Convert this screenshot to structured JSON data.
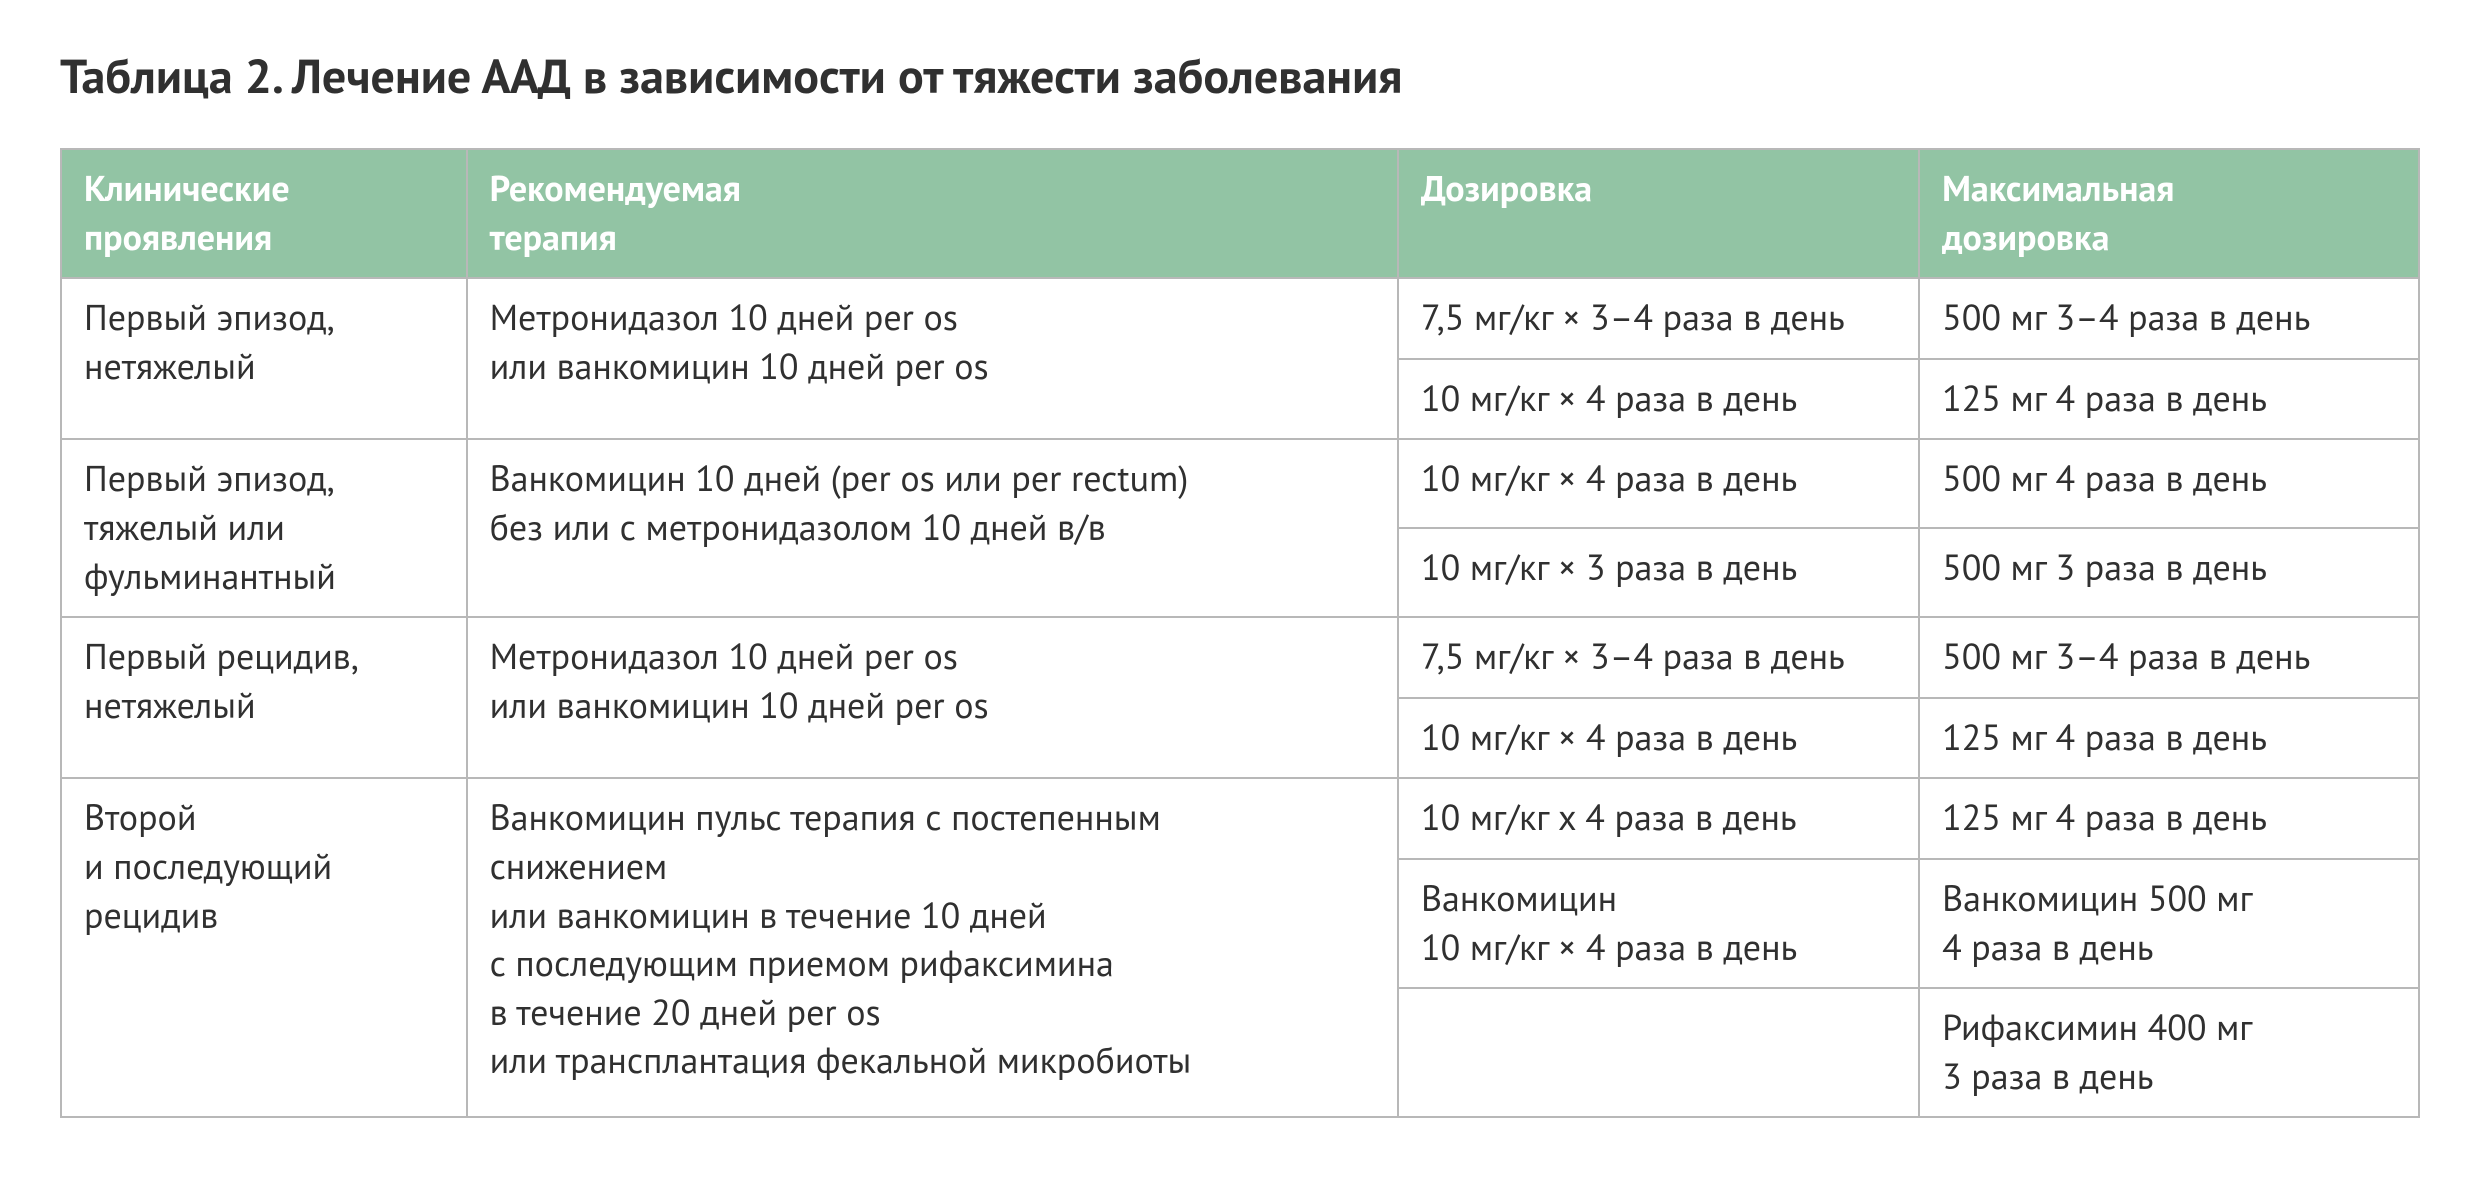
{
  "title": "Таблица 2. Лечение ААД в зависимости от тяжести заболевания",
  "table": {
    "type": "table",
    "header_bg": "#92c4a4",
    "header_text_color": "#ffffff",
    "border_color": "#b8b8b8",
    "body_text_color": "#303030",
    "font_size_pt": 27,
    "title_font_size_pt": 36,
    "column_widths_pct": [
      17.2,
      39.5,
      22.1,
      21.2
    ],
    "columns": [
      "Клинические\nпроявления",
      "Рекомендуемая\nтерапия",
      "Дозировка",
      "Максимальная\nдозировка"
    ],
    "groups": [
      {
        "clinical": "Первый эпизод,\nнетяжелый",
        "therapy": "Метронидазол 10 дней per os\nили ванкомицин 10 дней per os",
        "rows": [
          {
            "dose": "7,5 мг/кг × 3–4 раза в день",
            "max": "500 мг 3–4 раза в день"
          },
          {
            "dose": "10 мг/кг × 4 раза в день",
            "max": "125 мг 4 раза в день"
          }
        ]
      },
      {
        "clinical": "Первый эпизод,\nтяжелый или\nфульминантный",
        "therapy": "Ванкомицин 10 дней (per os или per rectum)\nбез или с метронидазолом 10 дней в/в",
        "rows": [
          {
            "dose": "10 мг/кг × 4 раза в день",
            "max": "500 мг 4 раза в день"
          },
          {
            "dose": "10 мг/кг × 3 раза в день",
            "max": "500 мг 3 раза в день"
          }
        ]
      },
      {
        "clinical": "Первый рецидив,\nнетяжелый",
        "therapy": "Метронидазол 10 дней per os\nили ванкомицин 10 дней per os",
        "rows": [
          {
            "dose": "7,5 мг/кг × 3–4 раза в день",
            "max": "500 мг 3–4 раза в день"
          },
          {
            "dose": "10 мг/кг × 4 раза в день",
            "max": "125 мг 4 раза в день"
          }
        ]
      },
      {
        "clinical": "Второй\nи последующий\nрецидив",
        "therapy": "Ванкомицин пульс терапия с постепенным\nснижением\nили ванкомицин в течение 10 дней\nс последующим приемом рифаксимина\nв течение 20 дней per os\nили трансплантация фекальной микробиоты",
        "rows": [
          {
            "dose": "10 мг/кг х 4 раза в день",
            "max": "125 мг 4 раза в день"
          },
          {
            "dose": "Ванкомицин\n10 мг/кг × 4 раза в день",
            "max": "Ванкомицин 500 мг\n4 раза в день"
          },
          {
            "dose": "",
            "max": "Рифаксимин 400 мг\n3 раза в день"
          }
        ]
      }
    ]
  }
}
